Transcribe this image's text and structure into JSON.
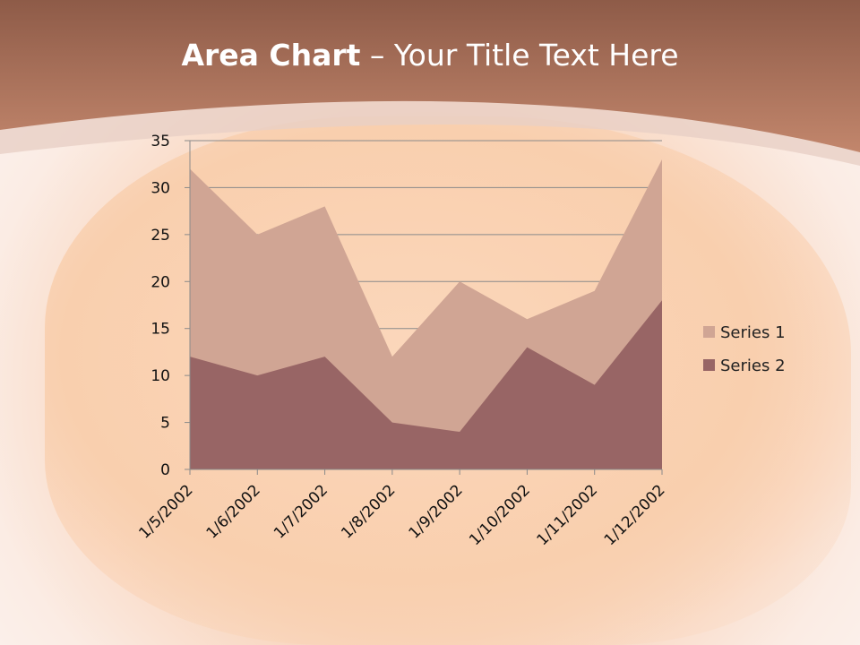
{
  "slide": {
    "title_bold": "Area Chart",
    "title_rest": " – Your Title Text Here"
  },
  "colors": {
    "header": "#b87a62",
    "series1": "#d0a594",
    "series2": "#986565",
    "grid": "#8a8a8a"
  },
  "chart_data": {
    "type": "area",
    "categories": [
      "1/5/2002",
      "1/6/2002",
      "1/7/2002",
      "1/8/2002",
      "1/9/2002",
      "1/10/2002",
      "1/11/2002",
      "1/12/2002"
    ],
    "series": [
      {
        "name": "Series 1",
        "values": [
          32,
          25,
          28,
          12,
          20,
          16,
          19,
          33
        ]
      },
      {
        "name": "Series 2",
        "values": [
          12,
          10,
          12,
          5,
          4,
          13,
          9,
          18
        ]
      }
    ],
    "yticks": [
      "0",
      "5",
      "10",
      "15",
      "20",
      "25",
      "30",
      "35"
    ],
    "ylim": [
      0,
      35
    ],
    "grid": true,
    "legend_position": "right"
  }
}
